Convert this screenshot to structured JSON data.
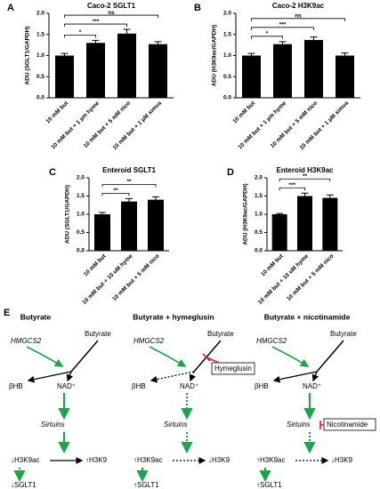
{
  "chart_data": [
    {
      "type": "bar",
      "panel": "A",
      "title": "Caco-2 SGLT1",
      "y_label": "ADU (SGLT1/GAPDH)",
      "categories": [
        "10 mM but",
        "10 mM but + 1 µm hyme",
        "10 mM but + 5 mM nico",
        "10 mM but + 1 µM simva"
      ],
      "values": [
        1.0,
        1.3,
        1.52,
        1.27
      ],
      "errors": [
        0.05,
        0.06,
        0.1,
        0.06
      ],
      "color": "#000000",
      "ylim": [
        0,
        2.0
      ],
      "yticks": [
        {
          "value": 0,
          "label": "0.0"
        },
        0.5,
        {
          "value": 1.0,
          "label": "1.0"
        },
        1.5,
        {
          "value": 2.0,
          "label": "2.0"
        }
      ],
      "significance": [
        {
          "pair": [
            0,
            1
          ],
          "label": "*"
        },
        {
          "pair": [
            0,
            2
          ],
          "label": "***"
        },
        {
          "pair": [
            0,
            3
          ],
          "label": "ns"
        }
      ]
    },
    {
      "type": "bar",
      "panel": "B",
      "title": "Caco-2 H3K9ac",
      "y_label": "ADU (H3K9ac/GAPDH)",
      "categories": [
        "10 mM but",
        "10 mM but + 1 µm hyme",
        "10 mM but + 5 mM nico",
        "10 mM but + 1 µM simva"
      ],
      "values": [
        1.0,
        1.27,
        1.37,
        1.0
      ],
      "errors": [
        0.05,
        0.06,
        0.07,
        0.06
      ],
      "color": "#000000",
      "ylim": [
        0,
        2.0
      ],
      "yticks": [
        {
          "value": 0,
          "label": "0.0"
        },
        0.5,
        {
          "value": 1.0,
          "label": "1.0"
        },
        1.5,
        {
          "value": 2.0,
          "label": "2.0"
        }
      ],
      "significance": [
        {
          "pair": [
            0,
            1
          ],
          "label": "*"
        },
        {
          "pair": [
            0,
            2
          ],
          "label": "***"
        },
        {
          "pair": [
            0,
            3
          ],
          "label": "ns"
        }
      ]
    },
    {
      "type": "bar",
      "panel": "C",
      "title": "Enteroid SGLT1",
      "y_label": "ADU (SGLT1/GAPDH)",
      "categories": [
        "10 mM but",
        "10 mM but + 10 uM hyme",
        "10 mM but + 5 mM nico"
      ],
      "values": [
        1.0,
        1.35,
        1.4
      ],
      "errors": [
        0.05,
        0.08,
        0.08
      ],
      "color": "#000000",
      "ylim": [
        0,
        2.0
      ],
      "yticks": [
        {
          "value": 0,
          "label": "0.0"
        },
        0.5,
        {
          "value": 1.0,
          "label": "1.0"
        },
        1.5,
        {
          "value": 2.0,
          "label": "2.0"
        }
      ],
      "significance": [
        {
          "pair": [
            0,
            1
          ],
          "label": "**"
        },
        {
          "pair": [
            0,
            2
          ],
          "label": "**"
        }
      ]
    },
    {
      "type": "bar",
      "panel": "D",
      "title": "Enteroid H3K9ac",
      "y_label": "ADU (H3K9ac/GAPDH)",
      "categories": [
        "10 mM but",
        "10 mM but + 10 uM hyme",
        "10 mM but + 5 mM nico"
      ],
      "values": [
        1.0,
        1.5,
        1.45
      ],
      "errors": [
        0.02,
        0.08,
        0.08
      ],
      "color": "#000000",
      "ylim": [
        0,
        2.0
      ],
      "yticks": [
        {
          "value": 0,
          "label": "0.0"
        },
        0.5,
        {
          "value": 1.0,
          "label": "1.0"
        },
        1.5,
        {
          "value": 2.0,
          "label": "2.0"
        }
      ],
      "significance": [
        {
          "pair": [
            0,
            1
          ],
          "label": "***"
        },
        {
          "pair": [
            0,
            2
          ],
          "label": "**"
        }
      ]
    }
  ],
  "diagram": {
    "panel": "E",
    "columns": [
      {
        "title": "Butyrate",
        "enzyme": "HMGCS2",
        "substrate": "Butyrate",
        "product1": "βHB",
        "product2": "NAD⁺",
        "effector": "Sirtuins",
        "mark": "↓H3K9ac",
        "mark2": "↑H3K9",
        "gene": "↓SGLT1"
      },
      {
        "title": "Butyrate + hymeglusin",
        "enzyme": "HMGCS2",
        "substrate": "Butyrate",
        "product1": "βHB",
        "product2": "NAD⁺",
        "effector": "Sirtuins",
        "mark": "↑H3K9ac",
        "mark2": "↓H3K9",
        "gene": "↑SGLT1",
        "inhibitor": "Hymeglusin"
      },
      {
        "title": "Butyrate + nicotinamide",
        "enzyme": "HMGCS2",
        "substrate": "Butyrate",
        "product1": "βHB",
        "product2": "NAD⁺",
        "effector": "Sirtuins",
        "mark": "↑H3K9ac",
        "mark2": "↓H3K9",
        "gene": "↑SGLT1",
        "inhibitor": "Nicotinamide"
      }
    ]
  }
}
